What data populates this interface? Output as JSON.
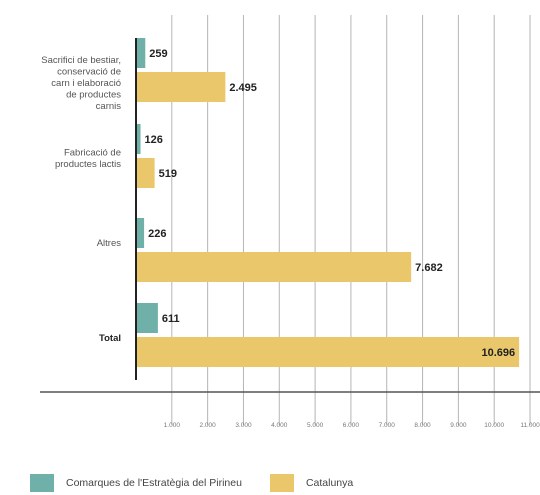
{
  "chart_data": {
    "type": "bar",
    "orientation": "horizontal",
    "categories": [
      [
        "Sacrifici de bestiar,",
        "conservació de",
        "carn i elaboració",
        "de productes",
        "carnis"
      ],
      [
        "Fabricació de",
        "productes lactis"
      ],
      [
        "Altres"
      ],
      [
        "Total"
      ]
    ],
    "series": [
      {
        "name": "Comarques de l'Estratègia del Pirineu",
        "color": "#6fb1a8",
        "values": [
          259,
          126,
          226,
          611
        ],
        "labels": [
          "259",
          "126",
          "226",
          "611"
        ]
      },
      {
        "name": "Catalunya",
        "color": "#e9c76a",
        "values": [
          2495,
          519,
          7682,
          10696
        ],
        "labels": [
          "2.495",
          "519",
          "7.682",
          "10.696"
        ]
      }
    ],
    "x_ticks": [
      "1.000",
      "2.000",
      "3.000",
      "4.000",
      "5.000",
      "6.000",
      "7.000",
      "8.000",
      "9.000",
      "10.000",
      "11.000"
    ],
    "xlim": [
      0,
      11000
    ],
    "grid": true,
    "legend_position": "bottom"
  }
}
